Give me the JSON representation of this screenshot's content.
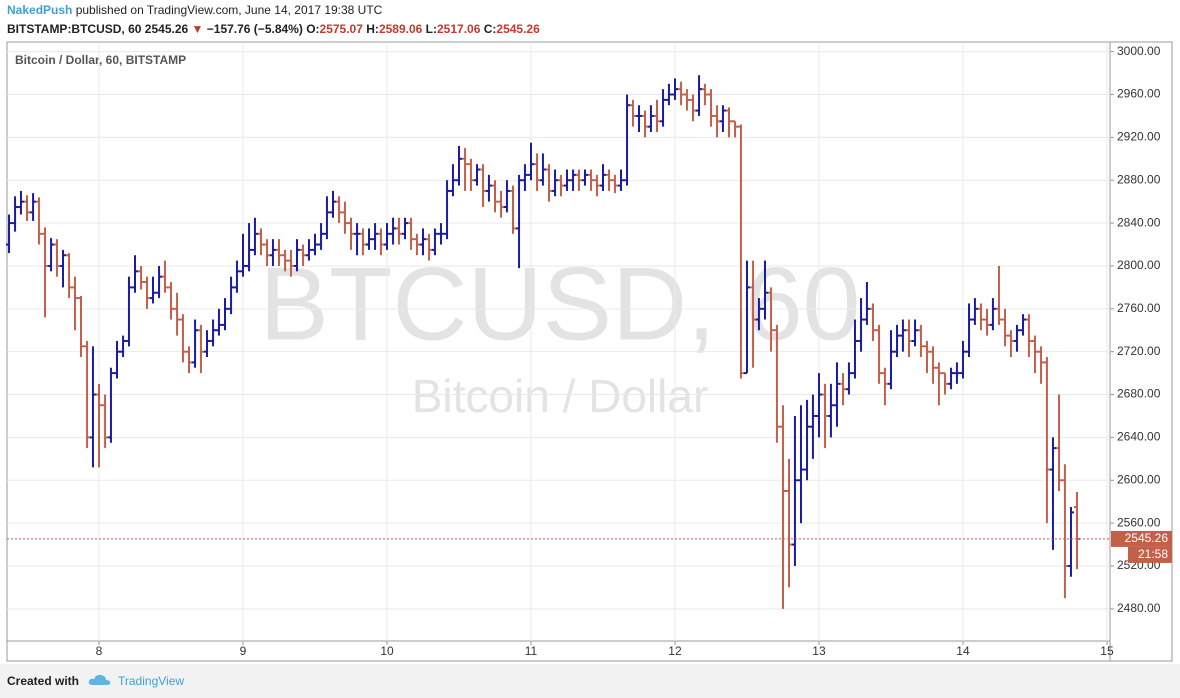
{
  "header": {
    "author": "NakedPush",
    "published": "published on TradingView.com, June 14, 2017 19:38 UTC",
    "symbol": "BITSTAMP:BTCUSD, 60",
    "last": "2545.26",
    "arrow": "▼",
    "change": "−157.76 (−5.84%)",
    "o_label": "O:",
    "open": "2575.07",
    "h_label": "H:",
    "high": "2589.06",
    "l_label": "L:",
    "low": "2517.06",
    "c_label": "C:",
    "close": "2545.26"
  },
  "footer": {
    "created": "Created with",
    "brand": "TradingView"
  },
  "chart_data": {
    "type": "ohlc",
    "title": "Bitcoin / Dollar, 60, BITSTAMP",
    "watermark": "BTCUSD, 60",
    "watermark_sub": "Bitcoin / Dollar",
    "up_color": "#1a1aa8",
    "down_color": "#c4604a",
    "grid": true,
    "xlim": [
      7.361,
      15.021
    ],
    "xticks": [
      8,
      9,
      10,
      11,
      12,
      13,
      14,
      15
    ],
    "ylim": [
      2450,
      3009
    ],
    "yticks": [
      {
        "value": 2480,
        "label": "2480.00"
      },
      {
        "value": 2520,
        "label": "2520.00"
      },
      {
        "value": 2560,
        "label": "2560.00"
      },
      {
        "value": 2600,
        "label": "2600.00"
      },
      {
        "value": 2640,
        "label": "2640.00"
      },
      {
        "value": 2680,
        "label": "2680.00"
      },
      {
        "value": 2720,
        "label": "2720.00"
      },
      {
        "value": 2760,
        "label": "2760.00"
      },
      {
        "value": 2800,
        "label": "2800.00"
      },
      {
        "value": 2840,
        "label": "2840.00"
      },
      {
        "value": 2880,
        "label": "2880.00"
      },
      {
        "value": 2920,
        "label": "2920.00"
      },
      {
        "value": 2960,
        "label": "2960.00"
      },
      {
        "value": 3000,
        "label": "3000.00"
      }
    ],
    "last_price": 2545.26,
    "last_price_label": "2545.26",
    "countdown": "21:58",
    "x": [
      7.375,
      7.417,
      7.458,
      7.5,
      7.542,
      7.583,
      7.625,
      7.667,
      7.708,
      7.75,
      7.792,
      7.833,
      7.875,
      7.917,
      7.958,
      8,
      8.042,
      8.083,
      8.125,
      8.167,
      8.208,
      8.25,
      8.292,
      8.333,
      8.375,
      8.417,
      8.458,
      8.5,
      8.542,
      8.583,
      8.625,
      8.667,
      8.708,
      8.75,
      8.792,
      8.833,
      8.875,
      8.917,
      8.958,
      9,
      9.042,
      9.083,
      9.125,
      9.167,
      9.208,
      9.25,
      9.292,
      9.333,
      9.375,
      9.417,
      9.458,
      9.5,
      9.542,
      9.583,
      9.625,
      9.667,
      9.708,
      9.75,
      9.792,
      9.833,
      9.875,
      9.917,
      9.958,
      10,
      10.042,
      10.083,
      10.125,
      10.167,
      10.208,
      10.25,
      10.292,
      10.333,
      10.375,
      10.417,
      10.458,
      10.5,
      10.542,
      10.583,
      10.625,
      10.667,
      10.708,
      10.75,
      10.792,
      10.833,
      10.875,
      10.917,
      10.958,
      11,
      11.042,
      11.083,
      11.125,
      11.167,
      11.208,
      11.25,
      11.292,
      11.333,
      11.375,
      11.417,
      11.458,
      11.5,
      11.542,
      11.583,
      11.625,
      11.667,
      11.708,
      11.75,
      11.792,
      11.833,
      11.875,
      11.917,
      11.958,
      12,
      12.042,
      12.083,
      12.125,
      12.167,
      12.208,
      12.25,
      12.292,
      12.333,
      12.375,
      12.417,
      12.458,
      12.5,
      12.542,
      12.583,
      12.625,
      12.667,
      12.708,
      12.75,
      12.792,
      12.833,
      12.875,
      12.917,
      12.958,
      13,
      13.042,
      13.083,
      13.125,
      13.167,
      13.208,
      13.25,
      13.292,
      13.333,
      13.375,
      13.417,
      13.458,
      13.5,
      13.542,
      13.583,
      13.625,
      13.667,
      13.708,
      13.75,
      13.792,
      13.833,
      13.875,
      13.917,
      13.958,
      14,
      14.042,
      14.083,
      14.125,
      14.167,
      14.208,
      14.25,
      14.292,
      14.333,
      14.375,
      14.417,
      14.458,
      14.5,
      14.542,
      14.583,
      14.625,
      14.667,
      14.708,
      14.75,
      14.792
    ],
    "open": [
      2820,
      2840,
      2855,
      2860,
      2850,
      2860,
      2830,
      2800,
      2820,
      2800,
      2810,
      2780,
      2770,
      2725,
      2640,
      2680,
      2670,
      2640,
      2700,
      2720,
      2730,
      2780,
      2795,
      2785,
      2770,
      2775,
      2790,
      2780,
      2760,
      2750,
      2720,
      2710,
      2740,
      2720,
      2730,
      2740,
      2745,
      2760,
      2780,
      2795,
      2800,
      2815,
      2830,
      2820,
      2810,
      2815,
      2810,
      2805,
      2800,
      2815,
      2810,
      2815,
      2820,
      2830,
      2850,
      2860,
      2850,
      2840,
      2830,
      2830,
      2820,
      2825,
      2830,
      2820,
      2830,
      2835,
      2830,
      2840,
      2825,
      2820,
      2825,
      2815,
      2830,
      2830,
      2870,
      2880,
      2900,
      2895,
      2880,
      2890,
      2870,
      2875,
      2860,
      2855,
      2870,
      2835,
      2880,
      2885,
      2895,
      2880,
      2890,
      2870,
      2880,
      2875,
      2880,
      2885,
      2880,
      2885,
      2880,
      2875,
      2885,
      2880,
      2875,
      2880,
      2950,
      2940,
      2940,
      2930,
      2940,
      2935,
      2955,
      2960,
      2965,
      2960,
      2955,
      2945,
      2965,
      2960,
      2940,
      2935,
      2945,
      2935,
      2930,
      2700,
      2780,
      2750,
      2760,
      2775,
      2740,
      2650,
      2590,
      2540,
      2600,
      2610,
      2650,
      2660,
      2680,
      2660,
      2670,
      2690,
      2685,
      2700,
      2730,
      2750,
      2760,
      2740,
      2700,
      2690,
      2720,
      2735,
      2740,
      2730,
      2740,
      2725,
      2720,
      2705,
      2700,
      2690,
      2700,
      2700,
      2720,
      2750,
      2760,
      2750,
      2745,
      2760,
      2750,
      2735,
      2730,
      2740,
      2750,
      2730,
      2720,
      2710,
      2610,
      2630,
      2600,
      2520,
      2575.07
    ],
    "high": [
      2848,
      2865,
      2870,
      2866,
      2868,
      2864,
      2836,
      2826,
      2825,
      2815,
      2812,
      2790,
      2772,
      2730,
      2725,
      2690,
      2680,
      2705,
      2730,
      2735,
      2790,
      2810,
      2800,
      2790,
      2790,
      2800,
      2805,
      2785,
      2775,
      2755,
      2725,
      2750,
      2745,
      2740,
      2750,
      2760,
      2770,
      2790,
      2805,
      2830,
      2840,
      2845,
      2835,
      2825,
      2825,
      2825,
      2815,
      2815,
      2825,
      2820,
      2825,
      2830,
      2840,
      2865,
      2870,
      2865,
      2860,
      2845,
      2840,
      2835,
      2835,
      2840,
      2835,
      2840,
      2845,
      2845,
      2845,
      2845,
      2830,
      2835,
      2830,
      2835,
      2840,
      2880,
      2895,
      2912,
      2910,
      2900,
      2895,
      2895,
      2885,
      2880,
      2870,
      2880,
      2875,
      2885,
      2895,
      2915,
      2905,
      2905,
      2895,
      2890,
      2885,
      2890,
      2890,
      2890,
      2890,
      2890,
      2885,
      2895,
      2890,
      2885,
      2890,
      2960,
      2955,
      2950,
      2945,
      2950,
      2955,
      2965,
      2970,
      2975,
      2972,
      2965,
      2960,
      2978,
      2970,
      2965,
      2950,
      2950,
      2948,
      2935,
      2932,
      2805,
      2805,
      2770,
      2805,
      2780,
      2745,
      2670,
      2620,
      2660,
      2670,
      2675,
      2680,
      2700,
      2690,
      2690,
      2710,
      2700,
      2710,
      2750,
      2770,
      2785,
      2765,
      2745,
      2705,
      2740,
      2745,
      2750,
      2750,
      2750,
      2745,
      2730,
      2725,
      2710,
      2700,
      2705,
      2710,
      2730,
      2765,
      2770,
      2765,
      2760,
      2770,
      2800,
      2760,
      2740,
      2745,
      2755,
      2755,
      2735,
      2725,
      2715,
      2640,
      2680,
      2615,
      2575,
      2589.06
    ],
    "low": [
      2812,
      2832,
      2848,
      2842,
      2842,
      2820,
      2752,
      2795,
      2790,
      2780,
      2770,
      2740,
      2715,
      2630,
      2612,
      2612,
      2630,
      2635,
      2695,
      2715,
      2725,
      2775,
      2778,
      2760,
      2765,
      2770,
      2775,
      2750,
      2735,
      2710,
      2700,
      2705,
      2700,
      2715,
      2725,
      2735,
      2740,
      2755,
      2775,
      2790,
      2795,
      2810,
      2810,
      2800,
      2800,
      2800,
      2795,
      2790,
      2795,
      2800,
      2805,
      2810,
      2815,
      2825,
      2845,
      2840,
      2830,
      2815,
      2810,
      2810,
      2815,
      2815,
      2810,
      2815,
      2820,
      2820,
      2825,
      2815,
      2810,
      2810,
      2805,
      2810,
      2820,
      2825,
      2865,
      2875,
      2870,
      2870,
      2875,
      2855,
      2860,
      2850,
      2845,
      2850,
      2830,
      2798,
      2870,
      2880,
      2870,
      2875,
      2860,
      2865,
      2865,
      2870,
      2870,
      2870,
      2875,
      2870,
      2865,
      2870,
      2870,
      2868,
      2870,
      2875,
      2930,
      2925,
      2920,
      2925,
      2925,
      2930,
      2950,
      2955,
      2950,
      2945,
      2935,
      2940,
      2950,
      2930,
      2920,
      2925,
      2920,
      2920,
      2695,
      2700,
      2705,
      2740,
      2750,
      2720,
      2635,
      2480,
      2500,
      2520,
      2560,
      2600,
      2620,
      2640,
      2630,
      2640,
      2650,
      2670,
      2680,
      2695,
      2720,
      2745,
      2730,
      2690,
      2670,
      2685,
      2715,
      2720,
      2715,
      2725,
      2715,
      2700,
      2690,
      2670,
      2680,
      2685,
      2690,
      2695,
      2715,
      2745,
      2740,
      2735,
      2740,
      2745,
      2725,
      2715,
      2720,
      2735,
      2715,
      2700,
      2690,
      2560,
      2535,
      2590,
      2490,
      2510,
      2517.06
    ],
    "close": [
      2840,
      2855,
      2860,
      2850,
      2860,
      2830,
      2800,
      2820,
      2800,
      2810,
      2780,
      2770,
      2725,
      2640,
      2680,
      2670,
      2640,
      2700,
      2720,
      2730,
      2780,
      2795,
      2785,
      2770,
      2775,
      2790,
      2780,
      2760,
      2750,
      2720,
      2710,
      2740,
      2720,
      2730,
      2740,
      2745,
      2760,
      2780,
      2795,
      2800,
      2815,
      2830,
      2820,
      2810,
      2815,
      2810,
      2805,
      2800,
      2815,
      2810,
      2815,
      2820,
      2830,
      2850,
      2860,
      2850,
      2840,
      2830,
      2830,
      2820,
      2825,
      2830,
      2820,
      2830,
      2835,
      2830,
      2840,
      2825,
      2820,
      2825,
      2815,
      2830,
      2830,
      2870,
      2880,
      2900,
      2895,
      2880,
      2890,
      2870,
      2875,
      2860,
      2855,
      2870,
      2835,
      2880,
      2885,
      2895,
      2880,
      2890,
      2870,
      2880,
      2875,
      2880,
      2885,
      2880,
      2885,
      2880,
      2875,
      2885,
      2880,
      2875,
      2880,
      2950,
      2940,
      2940,
      2930,
      2940,
      2935,
      2955,
      2960,
      2965,
      2960,
      2955,
      2945,
      2965,
      2960,
      2940,
      2935,
      2945,
      2935,
      2930,
      2700,
      2780,
      2750,
      2760,
      2775,
      2740,
      2650,
      2590,
      2540,
      2600,
      2610,
      2650,
      2660,
      2680,
      2660,
      2670,
      2690,
      2685,
      2700,
      2730,
      2750,
      2760,
      2740,
      2700,
      2690,
      2720,
      2735,
      2740,
      2730,
      2740,
      2725,
      2720,
      2705,
      2700,
      2690,
      2700,
      2700,
      2720,
      2750,
      2760,
      2750,
      2745,
      2760,
      2750,
      2735,
      2730,
      2740,
      2750,
      2730,
      2720,
      2710,
      2610,
      2630,
      2600,
      2520,
      2570,
      2545.26
    ]
  }
}
